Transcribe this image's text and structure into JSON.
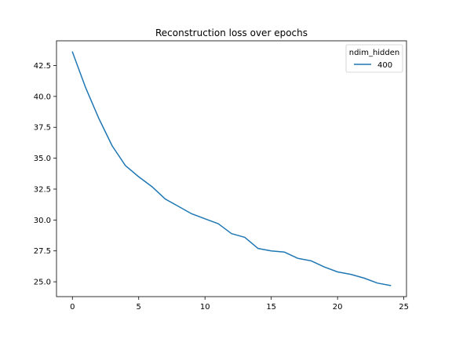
{
  "chart_data": {
    "type": "line",
    "title": "Reconstruction loss over epochs",
    "xlabel": "",
    "ylabel": "",
    "xlim": [
      -1.2,
      25.2
    ],
    "ylim": [
      23.8,
      44.5
    ],
    "xticks": [
      0,
      5,
      10,
      15,
      20,
      25
    ],
    "xtick_labels": [
      "0",
      "5",
      "10",
      "15",
      "20",
      "25"
    ],
    "yticks": [
      25.0,
      27.5,
      30.0,
      32.5,
      35.0,
      37.5,
      40.0,
      42.5
    ],
    "ytick_labels": [
      "25.0",
      "27.5",
      "30.0",
      "32.5",
      "35.0",
      "37.5",
      "40.0",
      "42.5"
    ],
    "grid": false,
    "legend": {
      "title": "ndim_hidden",
      "placement": "top-right",
      "entries": [
        {
          "label": "400",
          "color": "#1f77b4"
        }
      ]
    },
    "x": [
      0,
      1,
      2,
      3,
      4,
      5,
      6,
      7,
      8,
      9,
      10,
      11,
      12,
      13,
      14,
      15,
      16,
      17,
      18,
      19,
      20,
      21,
      22,
      23,
      24
    ],
    "series": [
      {
        "name": "400",
        "color": "#1f77b4",
        "values": [
          43.6,
          40.7,
          38.2,
          36.0,
          34.4,
          33.5,
          32.7,
          31.7,
          31.1,
          30.5,
          30.1,
          29.7,
          28.9,
          28.6,
          27.7,
          27.5,
          27.4,
          26.9,
          26.7,
          26.2,
          25.8,
          25.6,
          25.3,
          24.9,
          24.7
        ]
      }
    ]
  }
}
